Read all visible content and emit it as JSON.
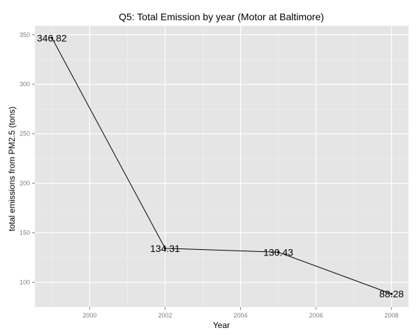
{
  "chart_data": {
    "type": "line",
    "title": "Q5: Total Emission by year (Motor at Baltimore)",
    "xlabel": "Year",
    "ylabel": "total emissions from PM2.5 (tons)",
    "x": [
      1999,
      2002,
      2005,
      2008
    ],
    "series": [
      {
        "values": [
          346.82,
          134.31,
          130.43,
          88.28
        ]
      }
    ],
    "data_labels": [
      "346.82",
      "134.31",
      "130.43",
      "88.28"
    ],
    "xlim": [
      1998.55,
      2008.45
    ],
    "ylim": [
      75.0,
      359.0
    ],
    "x_ticks": [
      2000,
      2002,
      2004,
      2006,
      2008
    ],
    "y_ticks": [
      100,
      150,
      200,
      250,
      300,
      350
    ],
    "grid": true,
    "colors": {
      "panel_bg": "#e5e5e5",
      "grid_major": "#ffffff",
      "grid_minor": "#f2f2f2",
      "line": "#000000",
      "tick_text": "#7f7f7f"
    }
  }
}
